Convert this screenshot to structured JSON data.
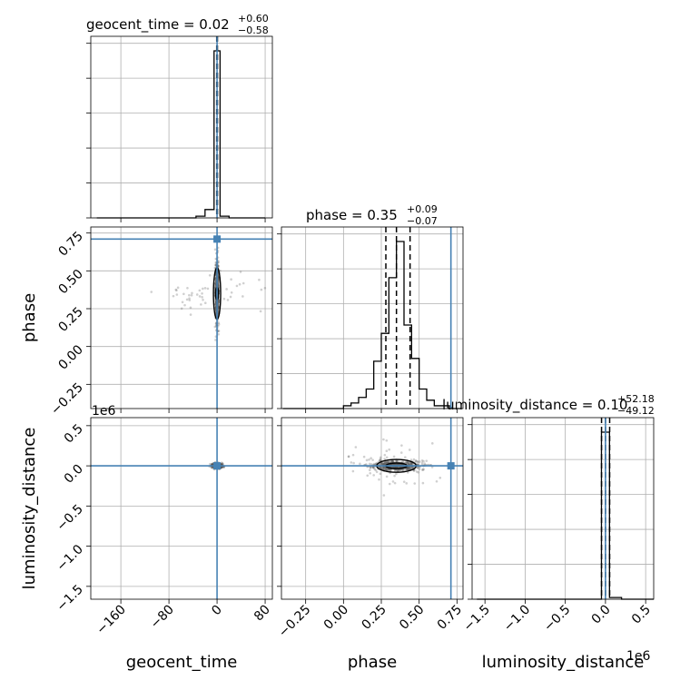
{
  "chart_data": {
    "type": "corner",
    "parameters": [
      {
        "name": "geocent_time",
        "xlabel": "geocent_time",
        "median": 0.02,
        "plus": 0.6,
        "minus": 0.58,
        "truth": 0.0
      },
      {
        "name": "phase",
        "xlabel": "phase",
        "median": 0.35,
        "plus": 0.09,
        "minus": 0.07,
        "truth": 0.71
      },
      {
        "name": "luminosity_distance",
        "xlabel": "luminosity_distance",
        "median": 0.1,
        "plus": 52.18,
        "minus": 49.12,
        "truth": 0.0
      }
    ],
    "titles": {
      "geocent_time": {
        "main": "geocent_time = 0.02",
        "sup": "+0.60",
        "sub": "−0.58"
      },
      "phase": {
        "main": "phase = 0.35",
        "sup": "+0.09",
        "sub": "−0.07"
      },
      "luminosity_distance": {
        "main": "luminosity_distance = 0.10",
        "sup": "+52.18",
        "sub": "−49.12"
      }
    },
    "axes_labels": {
      "phase_y": "phase",
      "ld_y": "luminosity_distance",
      "geocent_x": "geocent_time",
      "phase_x": "phase",
      "ld_x": "luminosity_distance"
    },
    "offset_text": {
      "ld_y": "1e6",
      "ld_x": "1e6"
    },
    "ticks": {
      "geocent_time": {
        "values": [
          -160,
          -80,
          0,
          80
        ],
        "labels": [
          "−160",
          "−80",
          "0",
          "80"
        ]
      },
      "phase": {
        "values": [
          -0.25,
          0.0,
          0.25,
          0.5,
          0.75
        ],
        "labels": [
          "−0.25",
          "0.00",
          "0.25",
          "0.50",
          "0.75"
        ]
      },
      "luminosity_distance": {
        "values": [
          -1.5,
          -1.0,
          -0.5,
          0.0,
          0.5
        ],
        "labels": [
          "−1.5",
          "−1.0",
          "−0.5",
          "0.0",
          "0.5"
        ]
      }
    },
    "ranges": {
      "geocent_time": [
        -210,
        92
      ],
      "phase": [
        -0.41,
        0.79
      ],
      "luminosity_distance": [
        -1.66,
        0.6
      ]
    },
    "hist_1d": {
      "geocent_time": {
        "edges": [
          -200,
          -185,
          -170,
          -155,
          -140,
          -125,
          -110,
          -95,
          -80,
          -65,
          -50,
          -35,
          -20,
          -5,
          5,
          20,
          35,
          50,
          65,
          80
        ],
        "counts": [
          0,
          0,
          0,
          0,
          0,
          0,
          0,
          0,
          0,
          0,
          0,
          1,
          5,
          100,
          1,
          0,
          0,
          0,
          0
        ]
      },
      "phase": {
        "edges": [
          -0.4,
          -0.3,
          -0.2,
          -0.1,
          0.0,
          0.05,
          0.1,
          0.15,
          0.2,
          0.25,
          0.3,
          0.35,
          0.4,
          0.45,
          0.5,
          0.55,
          0.6,
          0.65,
          0.7,
          0.75,
          0.78
        ],
        "counts": [
          0,
          0,
          0,
          0,
          1,
          2,
          4,
          7,
          17,
          27,
          47,
          60,
          30,
          18,
          7,
          3,
          1,
          1,
          0,
          0
        ]
      },
      "luminosity_distance": {
        "edges": [
          -1.6,
          -1.4,
          -1.2,
          -1.0,
          -0.8,
          -0.6,
          -0.4,
          -0.2,
          -0.05,
          0.05,
          0.2,
          0.4,
          0.6
        ],
        "counts": [
          0,
          0,
          0,
          0,
          0,
          0,
          0,
          0,
          100,
          1,
          0,
          0
        ]
      }
    },
    "quantile_lines": {
      "geocent_time": [
        -0.56,
        0.02,
        0.62
      ],
      "phase": [
        0.28,
        0.35,
        0.44
      ],
      "luminosity_distance": [
        -0.049,
        0.0001,
        0.052
      ]
    },
    "grid": true,
    "truth_color": "#4682b4",
    "line_color": "#000000"
  }
}
